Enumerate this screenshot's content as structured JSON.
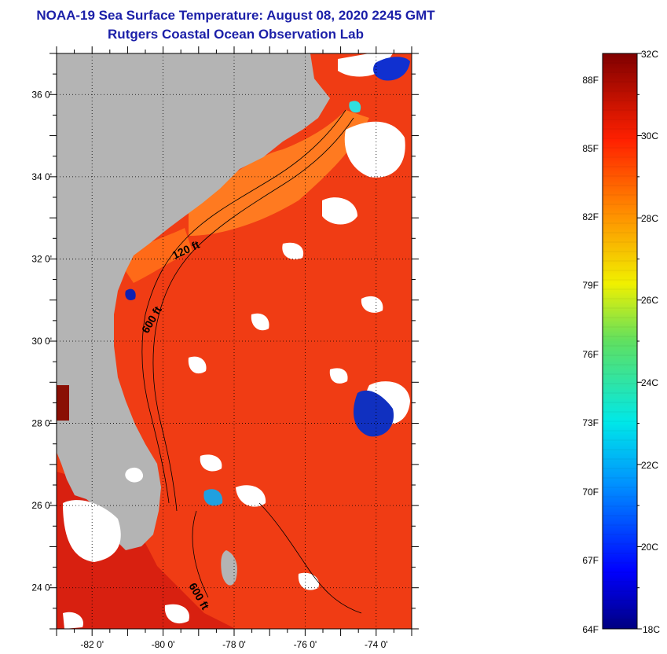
{
  "header": {
    "title": "NOAA-19 Sea Surface Temperature:  August 08, 2020 2245 GMT",
    "subtitle": "Rutgers Coastal Ocean Observation Lab"
  },
  "map": {
    "lon_range": [
      -83,
      -73
    ],
    "lat_range": [
      23,
      37
    ],
    "lat_ticks": [
      {
        "lat": 36,
        "label": "36 0'"
      },
      {
        "lat": 34,
        "label": "34 0'"
      },
      {
        "lat": 32,
        "label": "32 0'"
      },
      {
        "lat": 30,
        "label": "30 0'"
      },
      {
        "lat": 28,
        "label": "28 0'"
      },
      {
        "lat": 26,
        "label": "26 0'"
      },
      {
        "lat": 24,
        "label": "24 0'"
      }
    ],
    "lon_ticks": [
      {
        "lon": -82,
        "label": "-82 0'"
      },
      {
        "lon": -80,
        "label": "-80 0'"
      },
      {
        "lon": -78,
        "label": "-78 0'"
      },
      {
        "lon": -76,
        "label": "-76 0'"
      },
      {
        "lon": -74,
        "label": "-74 0'"
      }
    ],
    "contour_labels": [
      "120 ft",
      "600 ft",
      "600 ft"
    ],
    "colors": {
      "land": "#b4b4b4",
      "sea": "#f03c14",
      "cloud": "#ffffff"
    }
  },
  "colorbar": {
    "celsius_labels": [
      "32C",
      "30C",
      "28C",
      "26C",
      "24C",
      "22C",
      "20C",
      "18C"
    ],
    "fahrenheit_labels": [
      "88F",
      "85F",
      "82F",
      "79F",
      "76F",
      "73F",
      "70F",
      "67F",
      "64F"
    ],
    "range_c": [
      18,
      32
    ]
  }
}
